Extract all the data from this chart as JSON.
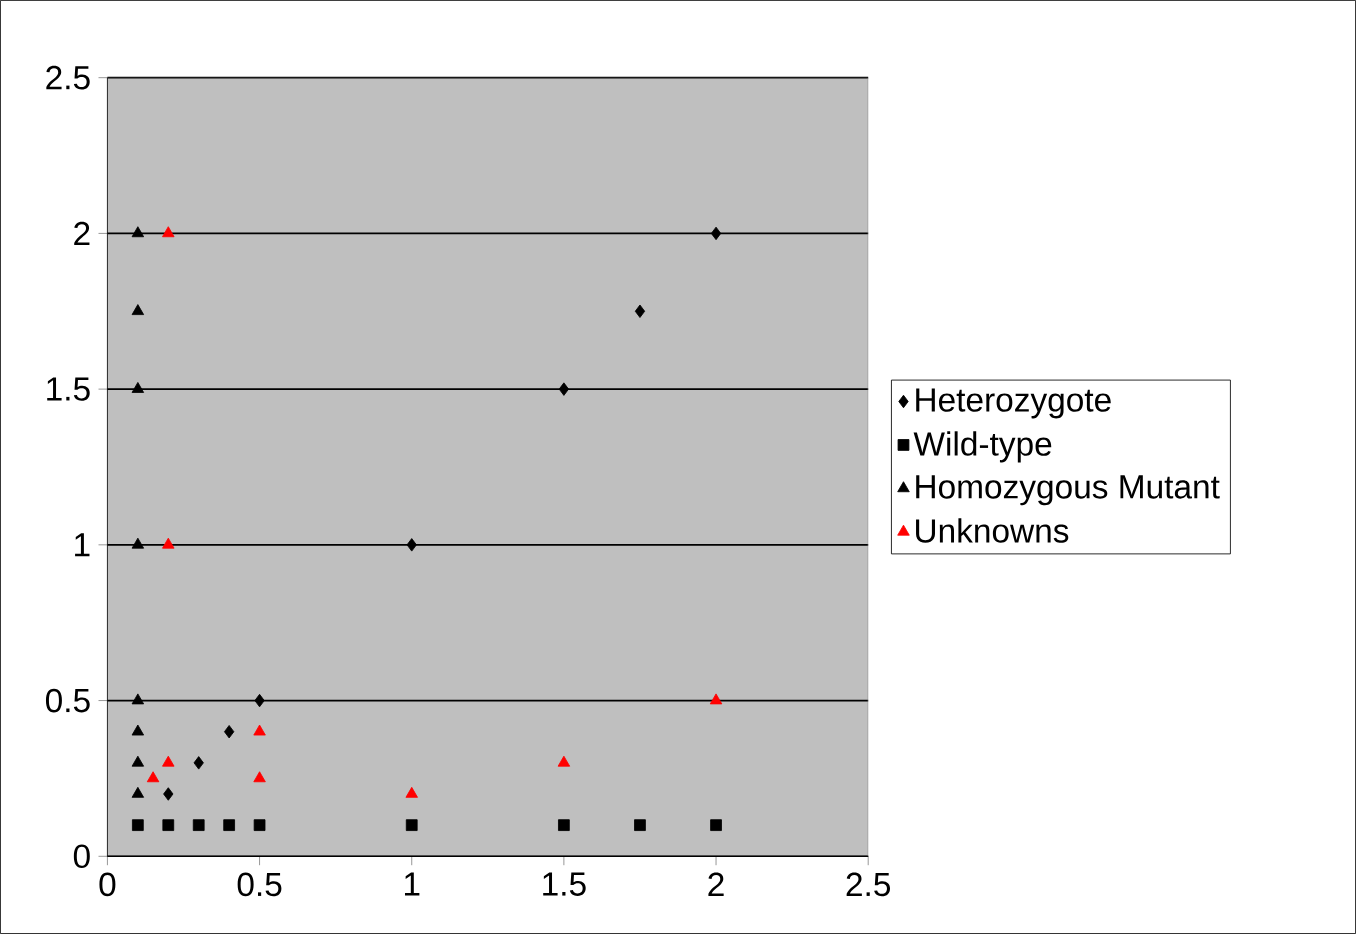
{
  "chart_data": {
    "type": "scatter",
    "xlim": [
      0,
      2.5
    ],
    "ylim": [
      0,
      2.5
    ],
    "xticks": [
      0,
      0.5,
      1,
      1.5,
      2,
      2.5
    ],
    "yticks": [
      0,
      0.5,
      1,
      1.5,
      2,
      2.5
    ],
    "grid": "y",
    "legend": "right",
    "series": [
      {
        "name": "Heterozygote",
        "color": "#000000",
        "marker": "diamond",
        "x": [
          0.2,
          0.3,
          0.4,
          0.5,
          1,
          1.5,
          1.75,
          2
        ],
        "values": [
          0.2,
          0.3,
          0.4,
          0.5,
          1,
          1.5,
          1.75,
          2
        ]
      },
      {
        "name": "Wild-type",
        "color": "#000000",
        "marker": "square",
        "x": [
          0.1,
          0.2,
          0.3,
          0.4,
          0.5,
          1,
          1.5,
          1.75,
          2
        ],
        "values": [
          0.1,
          0.1,
          0.1,
          0.1,
          0.1,
          0.1,
          0.1,
          0.1,
          0.1
        ]
      },
      {
        "name": "Homozygous Mutant",
        "color": "#000000",
        "marker": "triangle",
        "x": [
          0.1,
          0.1,
          0.1,
          0.1,
          0.1,
          0.1,
          0.1,
          0.1
        ],
        "values": [
          0.2,
          0.3,
          0.4,
          0.5,
          1,
          1.5,
          1.75,
          2
        ]
      },
      {
        "name": "Unknowns",
        "color": "#ff0000",
        "marker": "triangle",
        "x": [
          0.2,
          0.2,
          0.15,
          0.2,
          0.5,
          0.5,
          1,
          1.5,
          2
        ],
        "values": [
          2,
          1,
          0.25,
          0.3,
          0.4,
          0.25,
          0.2,
          0.3,
          0.5
        ]
      }
    ]
  }
}
